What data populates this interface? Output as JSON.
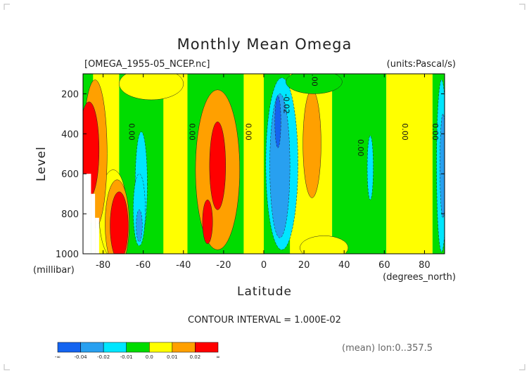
{
  "chart_data": {
    "type": "heatmap",
    "title": "Monthly Mean Omega",
    "file_label": "[OMEGA_1955-05_NCEP.nc]",
    "units_label": "(units:Pascal/s)",
    "xlabel": "Latitude",
    "x_unit_label": "(degrees_north)",
    "ylabel": "Level",
    "y_unit_label": "(millibar)",
    "xlim": [
      -90,
      90
    ],
    "ylim": [
      100,
      1000
    ],
    "y_inverted": true,
    "x_ticks": [
      -80,
      -60,
      -40,
      -20,
      0,
      20,
      40,
      60,
      80
    ],
    "x_tick_labels": [
      "-80",
      "-60",
      "-40",
      "-20",
      "0",
      "20",
      "40",
      "60",
      "80"
    ],
    "y_ticks": [
      200,
      400,
      600,
      800,
      1000
    ],
    "y_tick_labels": [
      "200",
      "400",
      "600",
      "800",
      "1000"
    ],
    "contour_interval_label": "CONTOUR INTERVAL = 1.000E-02",
    "mean_label": "(mean) lon:0..357.5",
    "contour_labels": [
      {
        "text": "0.00",
        "lat": -67,
        "lev": 390
      },
      {
        "text": "0.00",
        "lat": -37,
        "lev": 390
      },
      {
        "text": "0.00",
        "lat": -9,
        "lev": 390
      },
      {
        "text": "-0.02",
        "lat": 10,
        "lev": 250
      },
      {
        "text": "0.00",
        "lat": 24,
        "lev": 120
      },
      {
        "text": "0.00",
        "lat": 47,
        "lev": 470
      },
      {
        "text": "0.00",
        "lat": 69,
        "lev": 390
      },
      {
        "text": "0.00",
        "lat": 84,
        "lev": 390
      }
    ],
    "levels": [
      -0.04,
      -0.02,
      -0.01,
      0.0,
      0.01,
      0.02
    ],
    "colorbar": {
      "colors": [
        "#1464f0",
        "#28a0f0",
        "#00e6ff",
        "#00dc00",
        "#ffff00",
        "#ffa000",
        "#ff0000"
      ],
      "tick_labels": [
        "-∞",
        "-0.04",
        "-0.02",
        "-0.01",
        "0.0",
        "0.01",
        "0.02",
        "∞"
      ]
    },
    "bands": [
      {
        "bin": 3,
        "x0": -90,
        "x1": -84,
        "y0": 100,
        "y1": 1000
      },
      {
        "bin": 4,
        "x0": -85,
        "x1": -72,
        "y0": 100,
        "y1": 1000
      },
      {
        "bin": 3,
        "x0": -72,
        "x1": -48,
        "y0": 100,
        "y1": 1000
      },
      {
        "bin": 4,
        "x0": -50,
        "x1": -38,
        "y0": 100,
        "y1": 1000
      },
      {
        "bin": 3,
        "x0": -38,
        "x1": -10,
        "y0": 100,
        "y1": 1000
      },
      {
        "bin": 4,
        "x0": -10,
        "x1": 3,
        "y0": 100,
        "y1": 1000
      },
      {
        "bin": 3,
        "x0": 0,
        "x1": 18,
        "y0": 100,
        "y1": 1000
      },
      {
        "bin": 4,
        "x0": 13,
        "x1": 34,
        "y0": 100,
        "y1": 1000
      },
      {
        "bin": 3,
        "x0": 34,
        "x1": 61,
        "y0": 100,
        "y1": 1000
      },
      {
        "bin": 4,
        "x0": 61,
        "x1": 84,
        "y0": 100,
        "y1": 1000
      },
      {
        "bin": 3,
        "x0": 84,
        "x1": 90,
        "y0": 100,
        "y1": 1000
      }
    ],
    "blobs": [
      {
        "bin": 4,
        "cx": -56,
        "cy": 150,
        "rx": 16,
        "ry": 80
      },
      {
        "bin": 4,
        "cx": -75,
        "cy": 800,
        "rx": 7,
        "ry": 220
      },
      {
        "bin": 5,
        "cx": -84,
        "cy": 500,
        "rx": 6,
        "ry": 370
      },
      {
        "bin": 5,
        "cx": -73,
        "cy": 850,
        "rx": 6,
        "ry": 220
      },
      {
        "bin": 6,
        "cx": -87,
        "cy": 480,
        "rx": 5,
        "ry": 240
      },
      {
        "bin": 6,
        "cx": -72,
        "cy": 860,
        "rx": 4.5,
        "ry": 170
      },
      {
        "bin": 2,
        "cx": -61,
        "cy": 650,
        "rx": 3,
        "ry": 260
      },
      {
        "bin": 2,
        "cx": -62,
        "cy": 780,
        "rx": 3,
        "ry": 180
      },
      {
        "bin": 1,
        "cx": -62,
        "cy": 860,
        "rx": 1.5,
        "ry": 80
      },
      {
        "bin": 5,
        "cx": -23,
        "cy": 580,
        "rx": 11,
        "ry": 400
      },
      {
        "bin": 6,
        "cx": -23,
        "cy": 560,
        "rx": 4,
        "ry": 220
      },
      {
        "bin": 6,
        "cx": -28,
        "cy": 840,
        "rx": 2.5,
        "ry": 110
      },
      {
        "bin": 2,
        "cx": 9,
        "cy": 550,
        "rx": 8,
        "ry": 430
      },
      {
        "bin": 1,
        "cx": 8,
        "cy": 560,
        "rx": 5,
        "ry": 360
      },
      {
        "bin": 0,
        "cx": 7,
        "cy": 340,
        "rx": 1.5,
        "ry": 130
      },
      {
        "bin": 5,
        "cx": 24,
        "cy": 450,
        "rx": 4.5,
        "ry": 270
      },
      {
        "bin": 4,
        "cx": 30,
        "cy": 970,
        "rx": 12,
        "ry": 60
      },
      {
        "bin": 2,
        "cx": 53,
        "cy": 570,
        "rx": 1.5,
        "ry": 160
      },
      {
        "bin": 3,
        "cx": 25,
        "cy": 140,
        "rx": 14,
        "ry": 60
      },
      {
        "bin": 2,
        "cx": 88.5,
        "cy": 560,
        "rx": 2.5,
        "ry": 430
      },
      {
        "bin": 1,
        "cx": 89.2,
        "cy": 560,
        "rx": 1.5,
        "ry": 260
      }
    ],
    "missing": [
      {
        "x0": -90,
        "x1": -86,
        "y0": 600,
        "y1": 1000
      },
      {
        "x0": -86,
        "x1": -84,
        "y0": 700,
        "y1": 1000
      },
      {
        "x0": -84,
        "x1": -82,
        "y0": 820,
        "y1": 1000
      }
    ]
  }
}
